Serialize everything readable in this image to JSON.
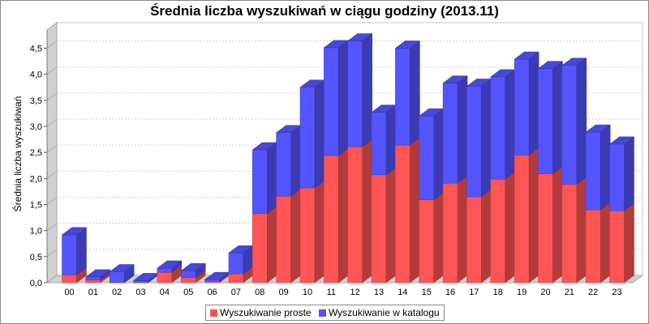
{
  "chart_data": {
    "type": "bar",
    "stacked": true,
    "three_d": true,
    "title": "Średnia liczba wyszukiwań w ciągu godziny (2013.11)",
    "xlabel": "",
    "ylabel": "Średnia liczba wyszukiwań",
    "ylim": [
      0,
      4.85
    ],
    "yticks": [
      "0,0",
      "0,5",
      "1,0",
      "1,5",
      "2,0",
      "2,5",
      "3,0",
      "3,5",
      "4,0",
      "4,5"
    ],
    "grid": true,
    "legend_position": "bottom",
    "categories": [
      "00",
      "01",
      "02",
      "03",
      "04",
      "05",
      "06",
      "07",
      "08",
      "09",
      "10",
      "11",
      "12",
      "13",
      "14",
      "15",
      "16",
      "17",
      "18",
      "19",
      "20",
      "21",
      "22",
      "23"
    ],
    "series": [
      {
        "name": "Wyszukiwanie proste",
        "color": "#ff5555",
        "values": [
          0.15,
          0.05,
          0.0,
          0.0,
          0.2,
          0.1,
          0.03,
          0.17,
          1.33,
          1.66,
          1.82,
          2.44,
          2.61,
          2.07,
          2.64,
          1.59,
          1.91,
          1.65,
          1.99,
          2.45,
          2.09,
          1.89,
          1.4,
          1.38
        ]
      },
      {
        "name": "Wyszukiwanie w katalogu",
        "color": "#5555ff",
        "values": [
          0.77,
          0.06,
          0.21,
          0.04,
          0.08,
          0.13,
          0.03,
          0.4,
          1.22,
          1.22,
          1.93,
          2.07,
          2.03,
          1.2,
          1.86,
          1.61,
          1.92,
          2.12,
          1.96,
          1.84,
          2.02,
          2.28,
          1.49,
          1.28
        ]
      }
    ]
  }
}
